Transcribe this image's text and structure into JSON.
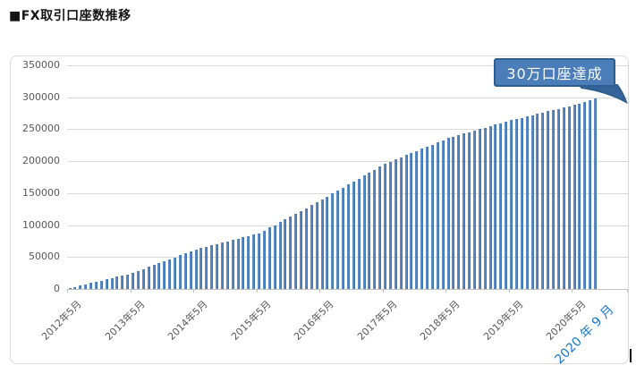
{
  "page": {
    "title": "■FX取引口座数推移"
  },
  "chart_data": {
    "type": "bar",
    "title": "■FX取引口座数推移",
    "xlabel": "",
    "ylabel": "",
    "x_period": "monthly, 2012-05 to 2020-09",
    "ylim": [
      0,
      350000
    ],
    "y_ticks": [
      350000,
      300000,
      250000,
      200000,
      150000,
      100000,
      50000,
      0
    ],
    "x_tick_labels": [
      "2012年5月",
      "2013年5月",
      "2014年5月",
      "2015年5月",
      "2016年5月",
      "2017年5月",
      "2018年5月",
      "2019年5月",
      "2020年5月"
    ],
    "final_x_label": "2020 年 9 月",
    "grid": true,
    "legend": false,
    "annotation": {
      "text": "30万口座達成",
      "points_to": "last bar (2020-09)"
    },
    "colors": {
      "bar": "#4F81BD",
      "callout_fill": "#4B7DB8",
      "callout_border": "#2E5D8F",
      "final_label": "#1779D2",
      "axis_text": "#595959",
      "gridline": "#D9D9D9"
    },
    "values": [
      1500,
      3500,
      5500,
      7500,
      9500,
      11500,
      13000,
      15000,
      17000,
      19000,
      21000,
      23000,
      25000,
      28000,
      31000,
      34500,
      37500,
      40500,
      43500,
      46500,
      49500,
      53000,
      56000,
      59000,
      62000,
      64000,
      66000,
      68500,
      70500,
      72500,
      74500,
      76500,
      78500,
      81000,
      83000,
      85000,
      87000,
      91500,
      96000,
      100000,
      104500,
      109000,
      113500,
      118000,
      122500,
      126500,
      131000,
      135500,
      140000,
      144500,
      149500,
      154000,
      158500,
      163500,
      168000,
      172500,
      177500,
      182000,
      186500,
      191500,
      196000,
      199500,
      202500,
      206000,
      209500,
      212500,
      216000,
      219500,
      222500,
      226000,
      229500,
      232500,
      236000,
      238500,
      240500,
      243000,
      245500,
      247500,
      250000,
      252500,
      254500,
      257000,
      259500,
      261500,
      264000,
      266000,
      268000,
      270000,
      272000,
      274000,
      276000,
      278000,
      280000,
      282000,
      284000,
      286000,
      288000,
      290500,
      293000,
      295500,
      298000
    ]
  }
}
